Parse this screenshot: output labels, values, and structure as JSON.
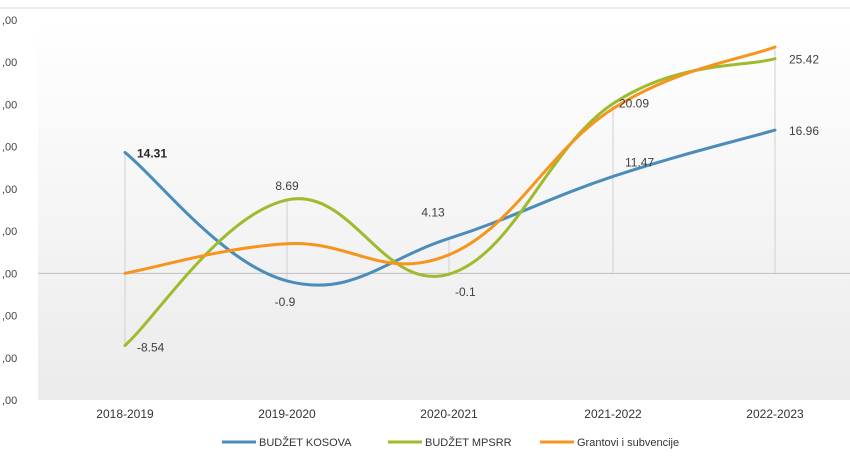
{
  "chart_data": {
    "type": "line",
    "smooth": true,
    "categories": [
      "2018-2019",
      "2019-2020",
      "2020-2021",
      "2021-2022",
      "2022-2023"
    ],
    "ylim": [
      -15,
      30
    ],
    "yticks": [
      -15,
      -10,
      -5,
      0,
      5,
      10,
      15,
      20,
      25,
      30
    ],
    "ytick_labels": [
      ",00",
      ",00",
      ",00",
      ",00",
      ",00",
      ",00",
      ",00",
      ",00",
      ",00",
      ",00"
    ],
    "grid": false,
    "legend_position": "bottom",
    "series": [
      {
        "name": "BUDŽET KOSOVA",
        "color": "#4A8DBB",
        "values": [
          14.31,
          -0.9,
          4.13,
          11.47,
          16.96
        ],
        "labels": [
          "14.31",
          "-0.9",
          "4.13",
          "11.47",
          "16.96"
        ]
      },
      {
        "name": "BUDŽET MPSRR",
        "color": "#9DBB2C",
        "values": [
          -8.54,
          8.69,
          -0.1,
          20.09,
          25.42
        ],
        "labels": [
          "-8.54",
          "8.69",
          "-0.1",
          "20.09",
          "25.42"
        ]
      },
      {
        "name": "Grantovi i subvencije",
        "color": "#F7941D",
        "values": [
          0,
          3.5,
          2.2,
          19.5,
          26.8
        ],
        "labels": []
      }
    ]
  }
}
